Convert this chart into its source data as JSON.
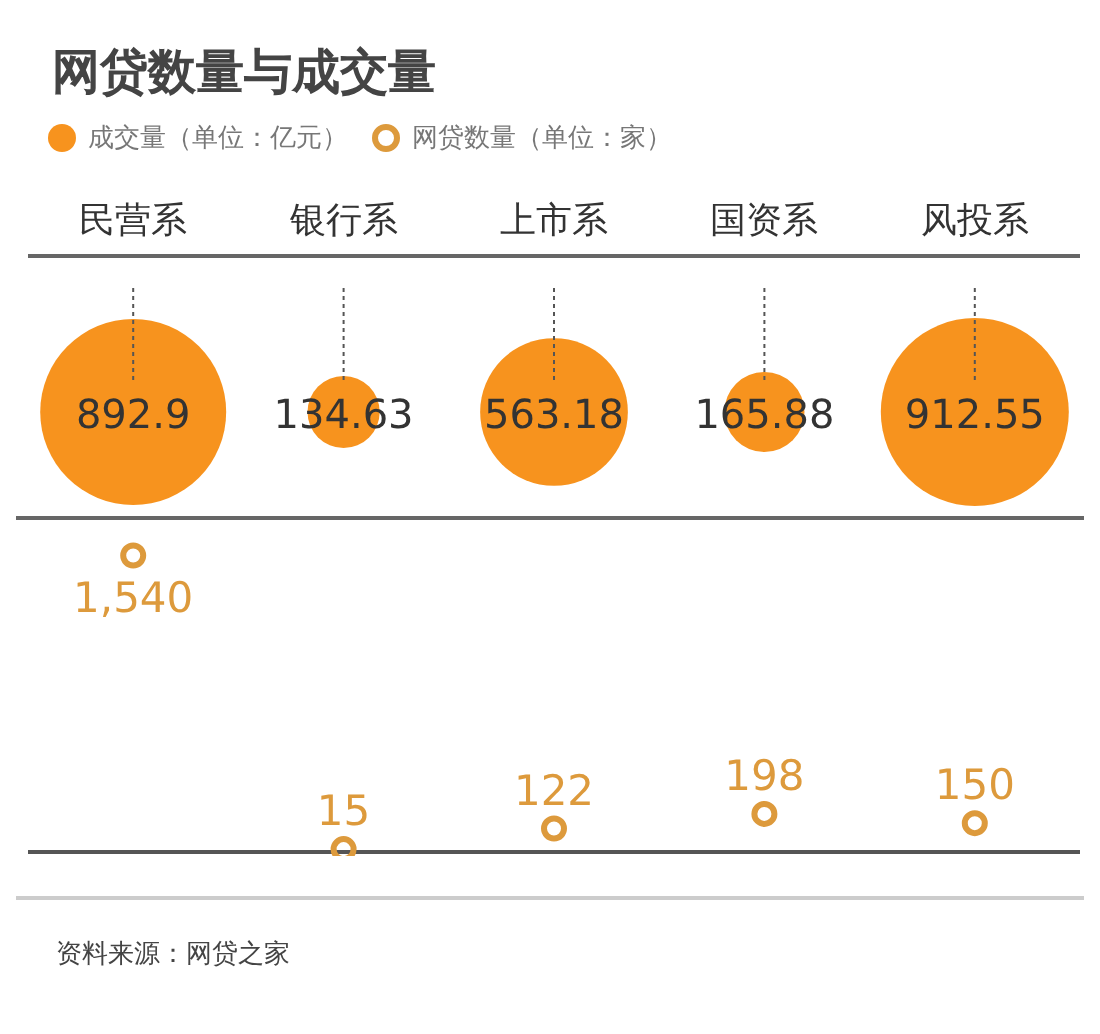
{
  "chart_data": [
    {
      "type": "other",
      "title": "网贷数量与成交量",
      "categories": [
        "民营系",
        "银行系",
        "上市系",
        "国资系",
        "风投系"
      ],
      "legend": "top left",
      "data_labels": true,
      "series": [
        {
          "name": "成交量（单位：亿元）",
          "color": "#f7931e",
          "values": [
            892.9,
            134.63,
            563.18,
            165.88,
            912.55
          ]
        }
      ]
    },
    {
      "type": "other",
      "categories": [
        null,
        null,
        null,
        null,
        null
      ],
      "legend": "top left",
      "series": [
        {
          "name": "网贷数量（单位：家）",
          "color": "#dd9a3c",
          "values": [
            1540,
            15,
            122,
            198,
            150
          ],
          "value_labels": [
            "1,540",
            "15",
            "122",
            "198",
            "150"
          ]
        }
      ],
      "annotations": [
        "资料来源：网贷之家"
      ]
    }
  ]
}
